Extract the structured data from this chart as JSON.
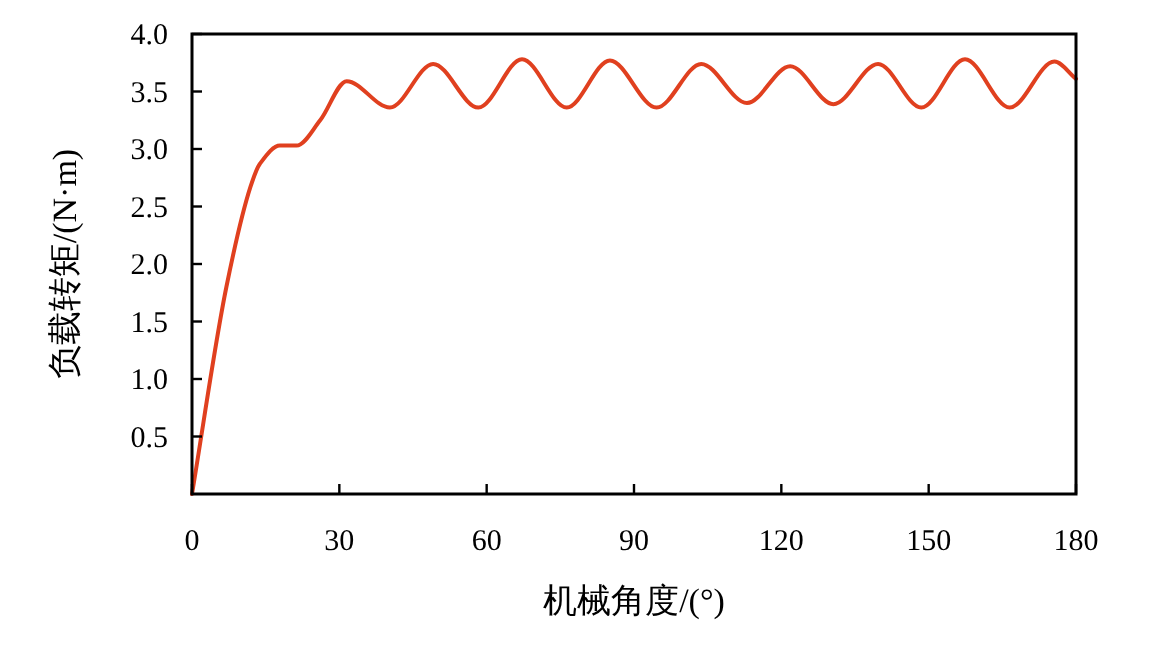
{
  "chart_data": {
    "type": "line",
    "xlabel": "机械角度/(°)",
    "ylabel": "负载转矩/(N·m)",
    "xlim": [
      0,
      180
    ],
    "xticks": [
      0,
      30,
      60,
      90,
      120,
      150,
      180
    ],
    "ylim": [
      0,
      4
    ],
    "yticks": [
      {
        "value": 0.5,
        "label": "0.5"
      },
      {
        "value": 1,
        "label": "1.0"
      },
      {
        "value": 1.5,
        "label": "1.5"
      },
      {
        "value": 2,
        "label": "2.0"
      },
      {
        "value": 2.5,
        "label": "2.5"
      },
      {
        "value": 3,
        "label": "3.0"
      },
      {
        "value": 3.5,
        "label": "3.5"
      },
      {
        "value": 4,
        "label": "4.0"
      }
    ],
    "grid": false,
    "marker": "none",
    "line_style": "solid",
    "series": [
      {
        "color": "#e0401f",
        "x": [
          0,
          7,
          11.9,
          13.8,
          17.9,
          21.3,
          26.1,
          31.5,
          40.3,
          49.1,
          58.3,
          67.2,
          76.3,
          85.1,
          94.6,
          103.7,
          113,
          121.8,
          130.6,
          139.7,
          148.5,
          157.4,
          166.5,
          175.6,
          180
        ],
        "values": [
          0,
          1.8,
          2.67,
          2.87,
          3.03,
          3.03,
          3.25,
          3.59,
          3.36,
          3.74,
          3.36,
          3.78,
          3.36,
          3.77,
          3.36,
          3.74,
          3.4,
          3.72,
          3.39,
          3.74,
          3.36,
          3.78,
          3.36,
          3.76,
          3.61
        ]
      }
    ]
  }
}
